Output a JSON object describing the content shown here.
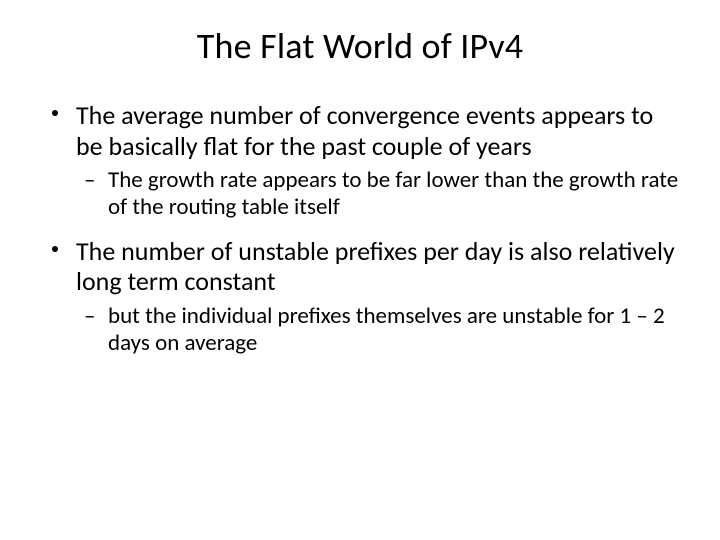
{
  "title": "The Flat World of IPv4",
  "bullets": [
    {
      "level1": "The average number of convergence events appears to be basically flat for the past couple of years",
      "level2": "The growth rate appears to be far lower than the growth rate of the routing table itself"
    },
    {
      "level1": "The number of unstable prefixes per day is also relatively long term constant",
      "level2": "but the individual prefixes themselves are unstable for 1 – 2 days on average"
    }
  ],
  "styles": {
    "background_color": "#ffffff",
    "text_color": "#000000",
    "title_fontsize": 36,
    "l1_fontsize": 26,
    "l2_fontsize": 23,
    "font_family": "Calibri",
    "dash_marker": "–"
  }
}
